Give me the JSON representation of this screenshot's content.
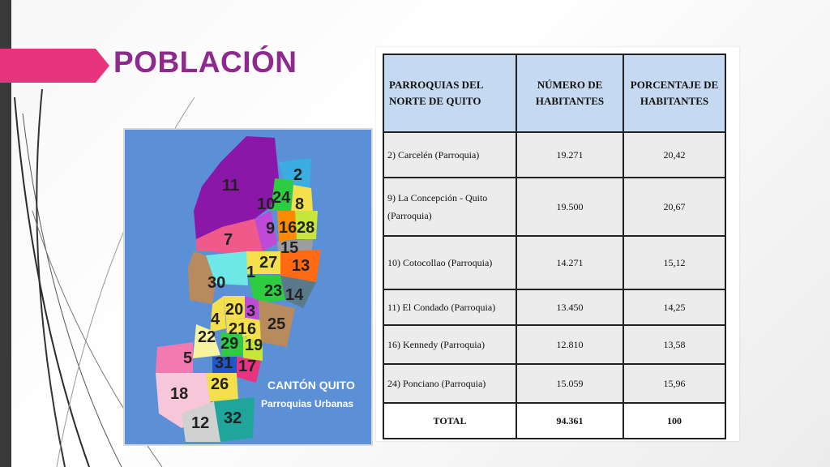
{
  "slide": {
    "title": "POBLACIÓN",
    "accent_color": "#e8337f",
    "title_color": "#8e2a8e"
  },
  "map": {
    "label_line1": "CANTÓN QUITO",
    "label_line2": "Parroquias Urbanas",
    "parish_numbers": [
      "11",
      "2",
      "10",
      "24",
      "8",
      "7",
      "9",
      "16",
      "28",
      "15",
      "27",
      "13",
      "1",
      "30",
      "23",
      "14",
      "4",
      "20",
      "3",
      "21",
      "6",
      "25",
      "22",
      "29",
      "19",
      "5",
      "31",
      "17",
      "26",
      "18",
      "12",
      "32"
    ]
  },
  "table": {
    "headers": [
      "PARROQUIAS DEL NORTE DE QUITO",
      "NÚMERO DE HABITANTES",
      "PORCENTAJE DE HABITANTES"
    ],
    "rows": [
      {
        "name": "2) Carcelén (Parroquia)",
        "habitantes": "19.271",
        "porcentaje": "20,42"
      },
      {
        "name": "9) La Concepción - Quito (Parroquia)",
        "habitantes": "19.500",
        "porcentaje": "20,67"
      },
      {
        "name": "10) Cotocollao (Parroquia)",
        "habitantes": "14.271",
        "porcentaje": "15,12"
      },
      {
        "name": "11) El Condado (Parroquia)",
        "habitantes": "13.450",
        "porcentaje": "14,25"
      },
      {
        "name": "16) Kennedy (Parroquia)",
        "habitantes": "12.810",
        "porcentaje": "13,58"
      },
      {
        "name": "24) Ponciano (Parroquia)",
        "habitantes": "15.059",
        "porcentaje": "15,96"
      }
    ],
    "total": {
      "label": "TOTAL",
      "habitantes": "94.361",
      "porcentaje": "100"
    }
  }
}
